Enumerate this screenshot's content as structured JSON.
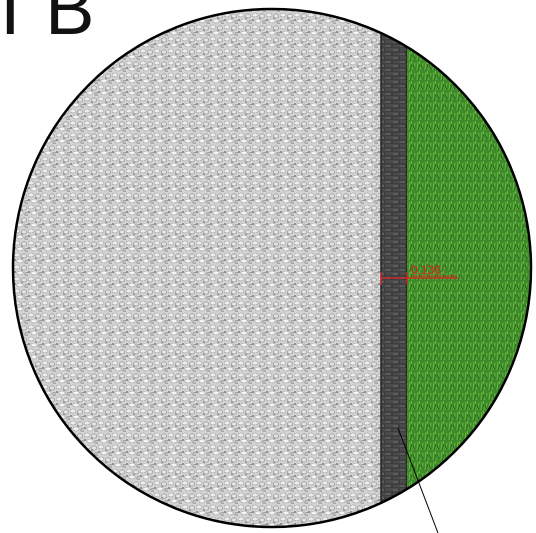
{
  "title": "I B",
  "dimension": {
    "value": "0.136"
  },
  "colors": {
    "gravel": "#c9c9c9",
    "gravel_dark": "#8f8f8f",
    "edging": "#4a4a4a",
    "edging_light": "#6b6b6b",
    "grass": "#3f8a2a",
    "grass_dark": "#2a6a1c",
    "dimension": "#e02020",
    "outline": "#000000"
  },
  "icons": {
    "leader": "leader-line-icon"
  }
}
